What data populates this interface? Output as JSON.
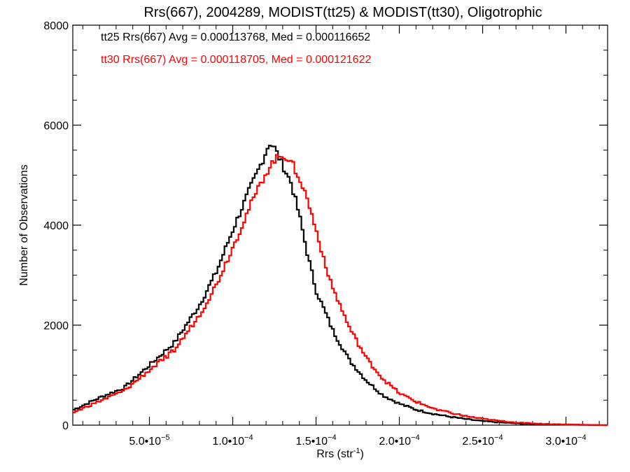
{
  "chart_data": {
    "type": "line",
    "title": "Rrs(667), 2004289, MODIST(tt25) & MODIST(tt30), Oligotrophic",
    "xlabel_main": "Rrs (str",
    "xlabel_sup": "-1",
    "xlabel_end": ")",
    "ylabel": "Number of Observations",
    "xlim": [
      4e-06,
      0.000325
    ],
    "ylim": [
      0,
      8000
    ],
    "grid": false,
    "legend_position": "top-left",
    "legend": [
      {
        "text": "tt25 Rrs(667) Avg = 0.000113768, Med = 0.000116652",
        "color": "#000000"
      },
      {
        "text": "tt30 Rrs(667) Avg = 0.000118705, Med = 0.000121622",
        "color": "#ff0000"
      }
    ],
    "x_ticks": [
      {
        "value": 5e-05,
        "label": "5.0•10",
        "exp": "−5"
      },
      {
        "value": 0.0001,
        "label": "1.0•10",
        "exp": "−4"
      },
      {
        "value": 0.00015,
        "label": "1.5•10",
        "exp": "−4"
      },
      {
        "value": 0.0002,
        "label": "2.0•10",
        "exp": "−4"
      },
      {
        "value": 0.00025,
        "label": "2.5•10",
        "exp": "−4"
      },
      {
        "value": 0.0003,
        "label": "3.0•10",
        "exp": "−4"
      }
    ],
    "y_ticks": [
      {
        "value": 0,
        "label": "0"
      },
      {
        "value": 2000,
        "label": "2000"
      },
      {
        "value": 4000,
        "label": "4000"
      },
      {
        "value": 6000,
        "label": "6000"
      },
      {
        "value": 8000,
        "label": "8000"
      }
    ],
    "series": [
      {
        "name": "tt25",
        "color": "#000000",
        "x": [
          4e-06,
          2e-05,
          3.5e-05,
          5e-05,
          6.5e-05,
          8e-05,
          9e-05,
          0.0001,
          0.00011,
          0.000118,
          0.000122,
          0.000125,
          0.00013,
          0.000135,
          0.00014,
          0.000145,
          0.00015,
          0.00016,
          0.00017,
          0.00018,
          0.00019,
          0.0002,
          0.00021,
          0.00022,
          0.00023,
          0.00024,
          0.00025,
          0.00026,
          0.00027,
          0.00028,
          0.00029,
          0.0003,
          0.00031,
          0.000325
        ],
        "y": [
          300,
          550,
          750,
          1200,
          1650,
          2400,
          3050,
          3900,
          4700,
          5300,
          5650,
          5550,
          5200,
          4850,
          4200,
          3400,
          2700,
          1900,
          1300,
          900,
          600,
          430,
          310,
          230,
          170,
          120,
          80,
          55,
          35,
          20,
          15,
          10,
          5,
          0
        ]
      },
      {
        "name": "tt30",
        "color": "#ff0000",
        "x": [
          4e-06,
          2e-05,
          3.5e-05,
          5e-05,
          6.5e-05,
          8e-05,
          9e-05,
          0.0001,
          0.00011,
          0.00012,
          0.000125,
          0.00013,
          0.000135,
          0.00014,
          0.000145,
          0.00015,
          0.000155,
          0.00016,
          0.00017,
          0.00018,
          0.00019,
          0.0002,
          0.00021,
          0.00022,
          0.00023,
          0.00024,
          0.00025,
          0.00026,
          0.00027,
          0.00028,
          0.00029,
          0.0003,
          0.00031,
          0.000325
        ],
        "y": [
          250,
          480,
          690,
          1100,
          1500,
          2200,
          2800,
          3550,
          4350,
          5050,
          5300,
          5400,
          5300,
          4950,
          4500,
          3900,
          3300,
          2750,
          1950,
          1350,
          930,
          640,
          470,
          340,
          250,
          180,
          125,
          85,
          55,
          35,
          22,
          15,
          8,
          0
        ]
      }
    ]
  }
}
